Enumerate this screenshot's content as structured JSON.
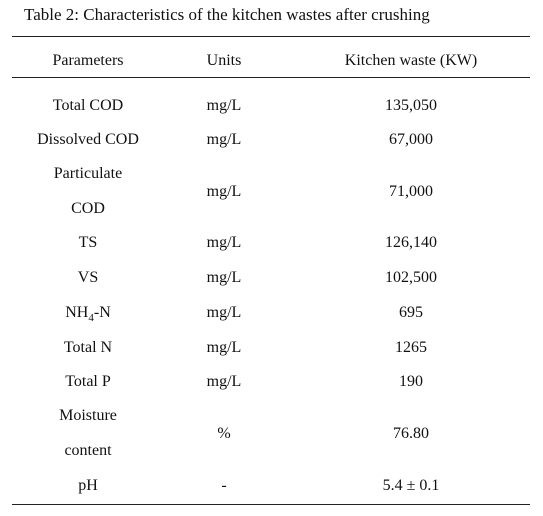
{
  "caption": "Table 2: Characteristics of the kitchen wastes after crushing",
  "headers": {
    "parameters": "Parameters",
    "units": "Units",
    "value": "Kitchen waste (KW)"
  },
  "rows": [
    {
      "parameter": "Total COD",
      "unit": "mg/L",
      "value": "135,050"
    },
    {
      "parameter": "Dissolved COD",
      "unit": "mg/L",
      "value": "67,000"
    },
    {
      "parameter_line1": "Particulate",
      "parameter_line2": "COD",
      "unit": "mg/L",
      "value": "71,000"
    },
    {
      "parameter": "TS",
      "unit": "mg/L",
      "value": "126,140"
    },
    {
      "parameter": "VS",
      "unit": "mg/L",
      "value": "102,500"
    },
    {
      "parameter_main": "NH",
      "parameter_sub": "4",
      "parameter_tail": "-N",
      "unit": "mg/L",
      "value": "695"
    },
    {
      "parameter": "Total N",
      "unit": "mg/L",
      "value": "1265"
    },
    {
      "parameter": "Total P",
      "unit": "mg/L",
      "value": "190"
    },
    {
      "parameter_line1": "Moisture",
      "parameter_line2": "content",
      "unit": "%",
      "value": "76.80"
    },
    {
      "parameter": "pH",
      "unit": "-",
      "value": "5.4  ± 0.1"
    }
  ]
}
